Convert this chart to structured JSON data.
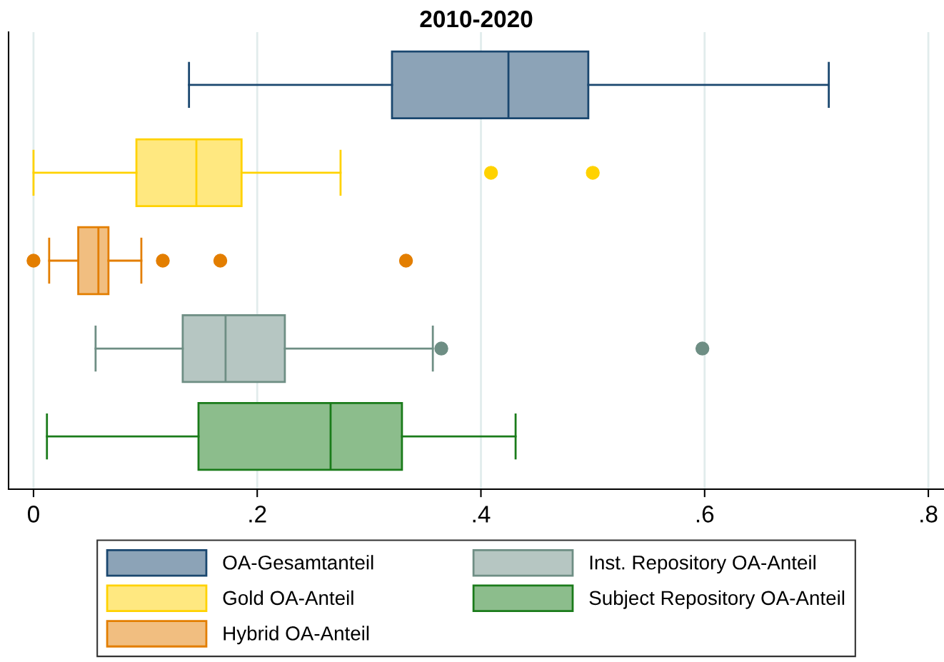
{
  "chart_data": {
    "type": "box",
    "title": "2010-2020",
    "orientation": "horizontal",
    "categories": [
      null,
      null,
      null,
      null,
      null
    ],
    "series": [
      {
        "name": "OA-Gesamtanteil",
        "color": "#1a476f",
        "boxes": [
          {
            "low": 0.139,
            "q1": 0.3205,
            "median": 0.4246,
            "q3": 0.496,
            "high": 0.711
          },
          null,
          null,
          null,
          null
        ]
      },
      {
        "name": "Gold OA-Anteil",
        "color": "#ffd200",
        "boxes": [
          null,
          {
            "low": 0,
            "q1": 0.092,
            "median": 0.1456,
            "q3": 0.186,
            "high": 0.2745,
            "outliers": [
              0.409,
              0.5
            ]
          },
          null,
          null,
          null
        ]
      },
      {
        "name": "Hybrid OA-Anteil",
        "color": "#e37e00",
        "boxes": [
          null,
          null,
          {
            "low": 0.014,
            "q1": 0.04,
            "median": 0.058,
            "q3": 0.067,
            "high": 0.0964,
            "outliers": [
              0,
              0.1156,
              0.167,
              0.333
            ]
          },
          null,
          null
        ]
      },
      {
        "name": "Inst. Repository OA-Anteil",
        "color": "#6e8e84",
        "boxes": [
          null,
          null,
          null,
          {
            "low": 0.0555,
            "q1": 0.1334,
            "median": 0.1717,
            "q3": 0.2247,
            "high": 0.357,
            "outliers": [
              0.3646,
              0.598
            ]
          },
          null
        ]
      },
      {
        "name": "Subject Repository OA-Anteil",
        "color": "#1a7b1a",
        "boxes": [
          null,
          null,
          null,
          null,
          {
            "low": 0.012,
            "q1": 0.1475,
            "median": 0.2656,
            "q3": 0.3294,
            "high": 0.431
          }
        ]
      }
    ],
    "xlim": [
      -0.0223,
      0.814
    ],
    "xticks": [
      0,
      {
        "value": 0.2,
        "label": ".2"
      },
      {
        "value": 0.4,
        "label": ".4"
      },
      {
        "value": 0.6,
        "label": ".6"
      },
      {
        "value": 0.8,
        "label": ".8"
      }
    ],
    "grid": "x",
    "legend": "bottom"
  }
}
